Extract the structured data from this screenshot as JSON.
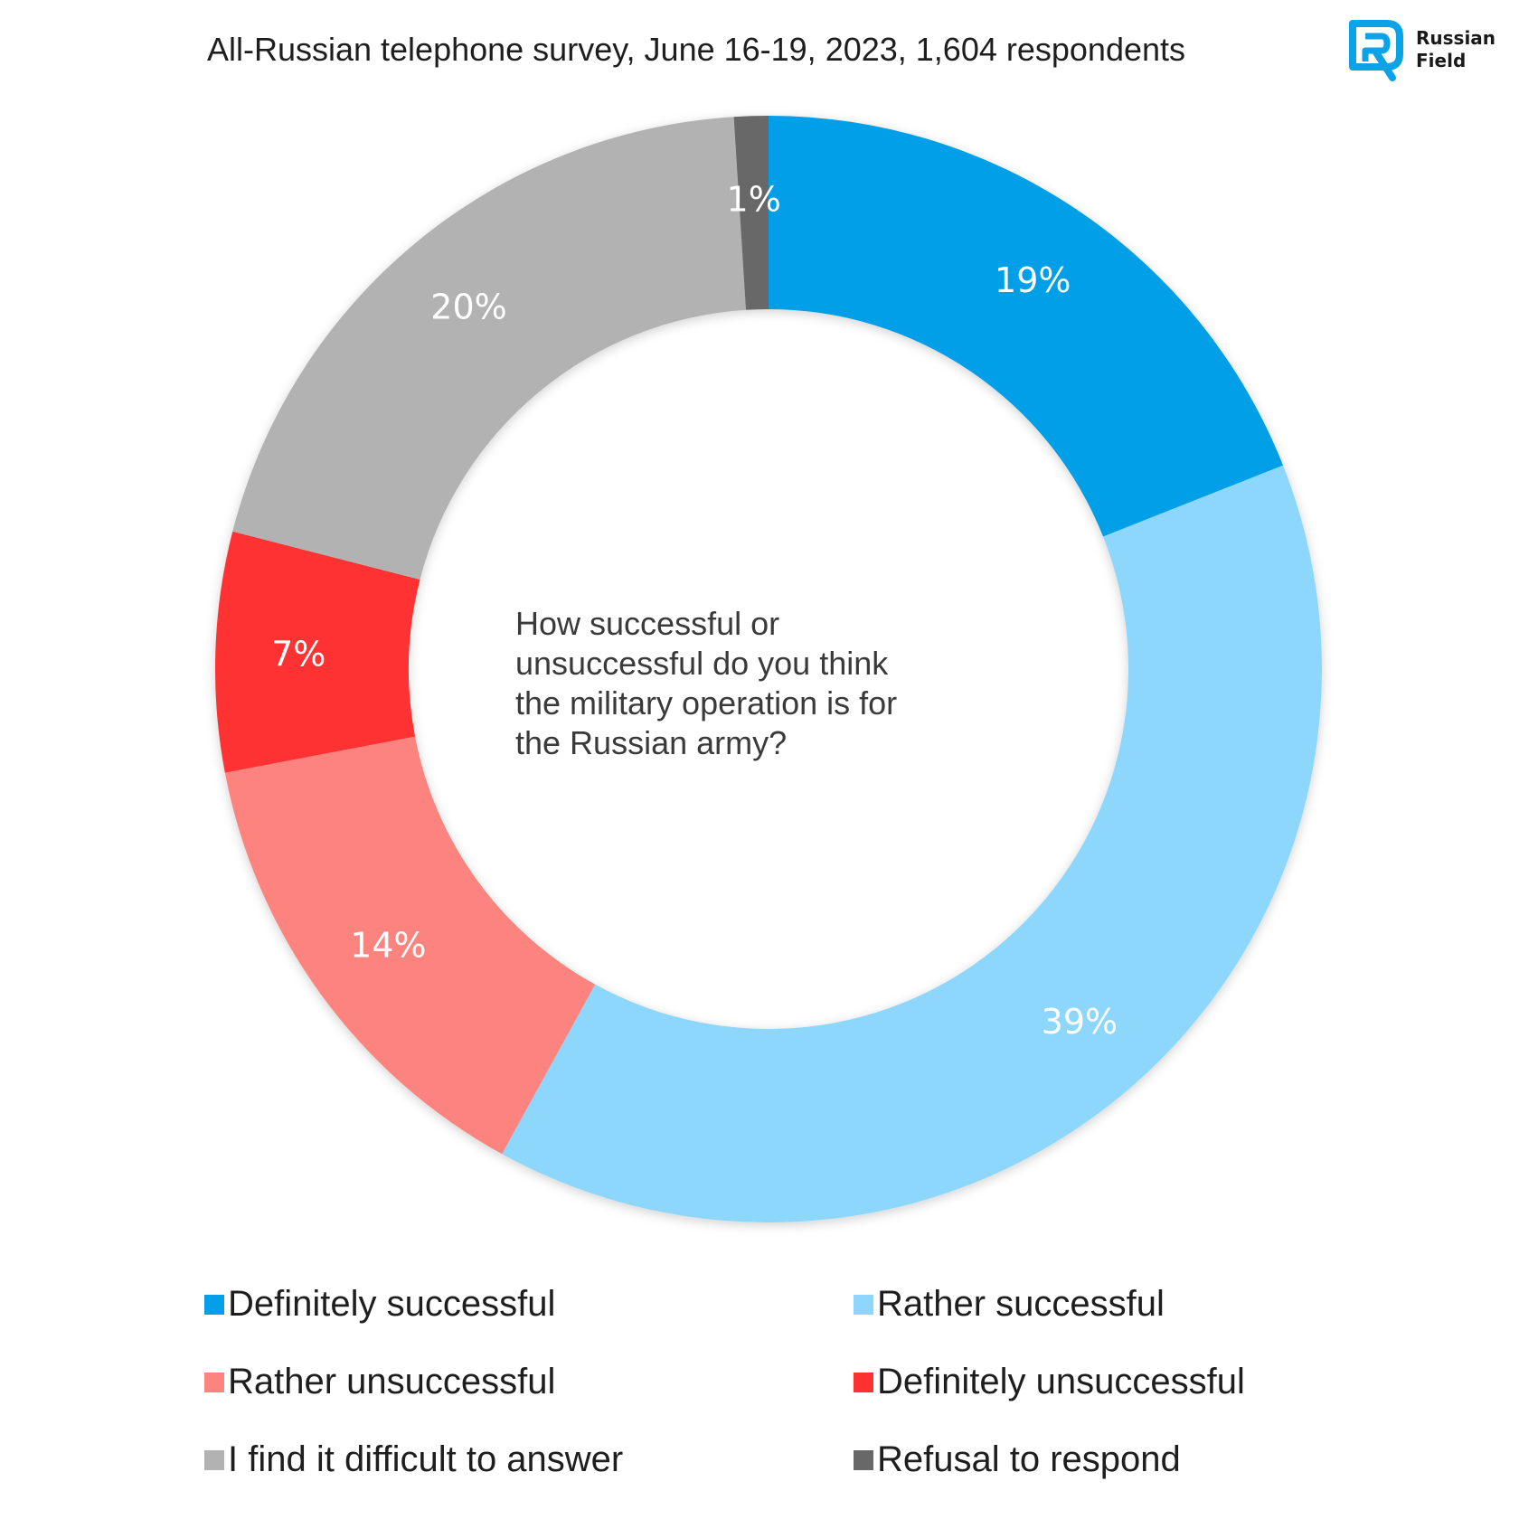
{
  "header": {
    "title": "All-Russian telephone survey, June 16-19, 2023, 1,604 respondents"
  },
  "logo": {
    "icon": "russian-field-logo-icon",
    "line1": "Russian",
    "line2": "Field",
    "color": "#0aa3e8"
  },
  "chart_data": {
    "type": "pie",
    "donut": true,
    "center_text": "How successful or\nunsuccessful do you think\nthe military operation is for\n        the Russian army?",
    "slices": [
      {
        "name": "Definitely successful",
        "value": 19,
        "label": "19%",
        "color": "#049fe8"
      },
      {
        "name": "Rather successful",
        "value": 39,
        "label": "39%",
        "color": "#8dd7fc"
      },
      {
        "name": "Rather unsuccessful",
        "value": 14,
        "label": "14%",
        "color": "#fd847e"
      },
      {
        "name": "Definitely unsuccessful",
        "value": 7,
        "label": "7%",
        "color": "#fe3131"
      },
      {
        "name": "I find it difficult to answer",
        "value": 20,
        "label": "20%",
        "color": "#b2b2b2"
      },
      {
        "name": "Refusal to respond",
        "value": 1,
        "label": "1%",
        "color": "#686868"
      }
    ],
    "legend": [
      {
        "name": "Definitely successful",
        "color": "#049fe8"
      },
      {
        "name": "Rather successful",
        "color": "#8dd7fc"
      },
      {
        "name": "Rather unsuccessful",
        "color": "#fd847e"
      },
      {
        "name": "Definitely unsuccessful",
        "color": "#fe3131"
      },
      {
        "name": "I find it difficult to answer",
        "color": "#b2b2b2"
      },
      {
        "name": "Refusal to respond",
        "color": "#686868"
      }
    ],
    "legend_position": "bottom"
  }
}
